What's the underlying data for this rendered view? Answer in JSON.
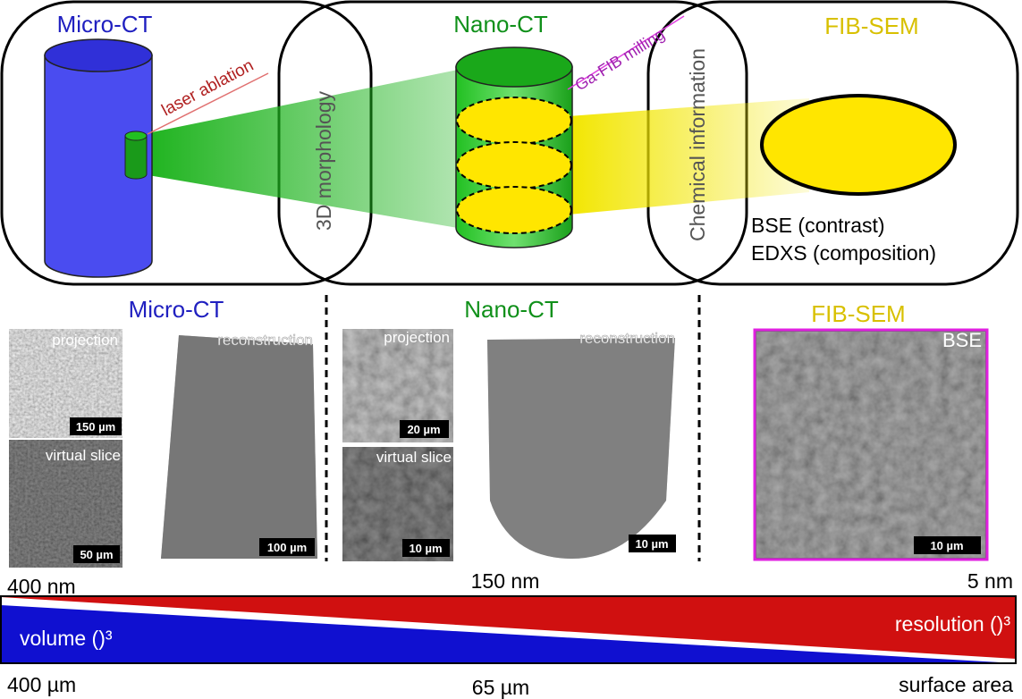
{
  "schematic": {
    "micro_ct": {
      "title": "Micro-CT",
      "annotation": "laser ablation"
    },
    "overlap_1": "3D morphology",
    "nano_ct": {
      "title": "Nano-CT",
      "annotation": "Ga-FIB milling"
    },
    "overlap_2": "Chemical information",
    "fib_sem": {
      "title": "FIB-SEM",
      "methods": [
        "BSE (contrast)",
        "EDXS (composition)"
      ]
    }
  },
  "panels": [
    {
      "title": "Micro-CT",
      "images": [
        {
          "label": "projection",
          "scale_bar": "150 µm"
        },
        {
          "label": "virtual slice",
          "scale_bar": "50 µm"
        },
        {
          "label": "reconstruction",
          "scale_bar": "100 µm"
        }
      ]
    },
    {
      "title": "Nano-CT",
      "images": [
        {
          "label": "projection",
          "scale_bar": "20 µm"
        },
        {
          "label": "virtual slice",
          "scale_bar": "10 µm"
        },
        {
          "label": "reconstruction",
          "scale_bar": "10 µm"
        }
      ]
    },
    {
      "title": "FIB-SEM",
      "images": [
        {
          "label": "BSE",
          "scale_bar": "10 µm"
        }
      ]
    }
  ],
  "scale": {
    "resolution_labels": [
      "400 nm",
      "150 nm",
      "5 nm"
    ],
    "volume": "volume ()³",
    "resolution": "resolution ()³",
    "size_labels": [
      "400 µm",
      "65 µm",
      "surface area"
    ]
  }
}
